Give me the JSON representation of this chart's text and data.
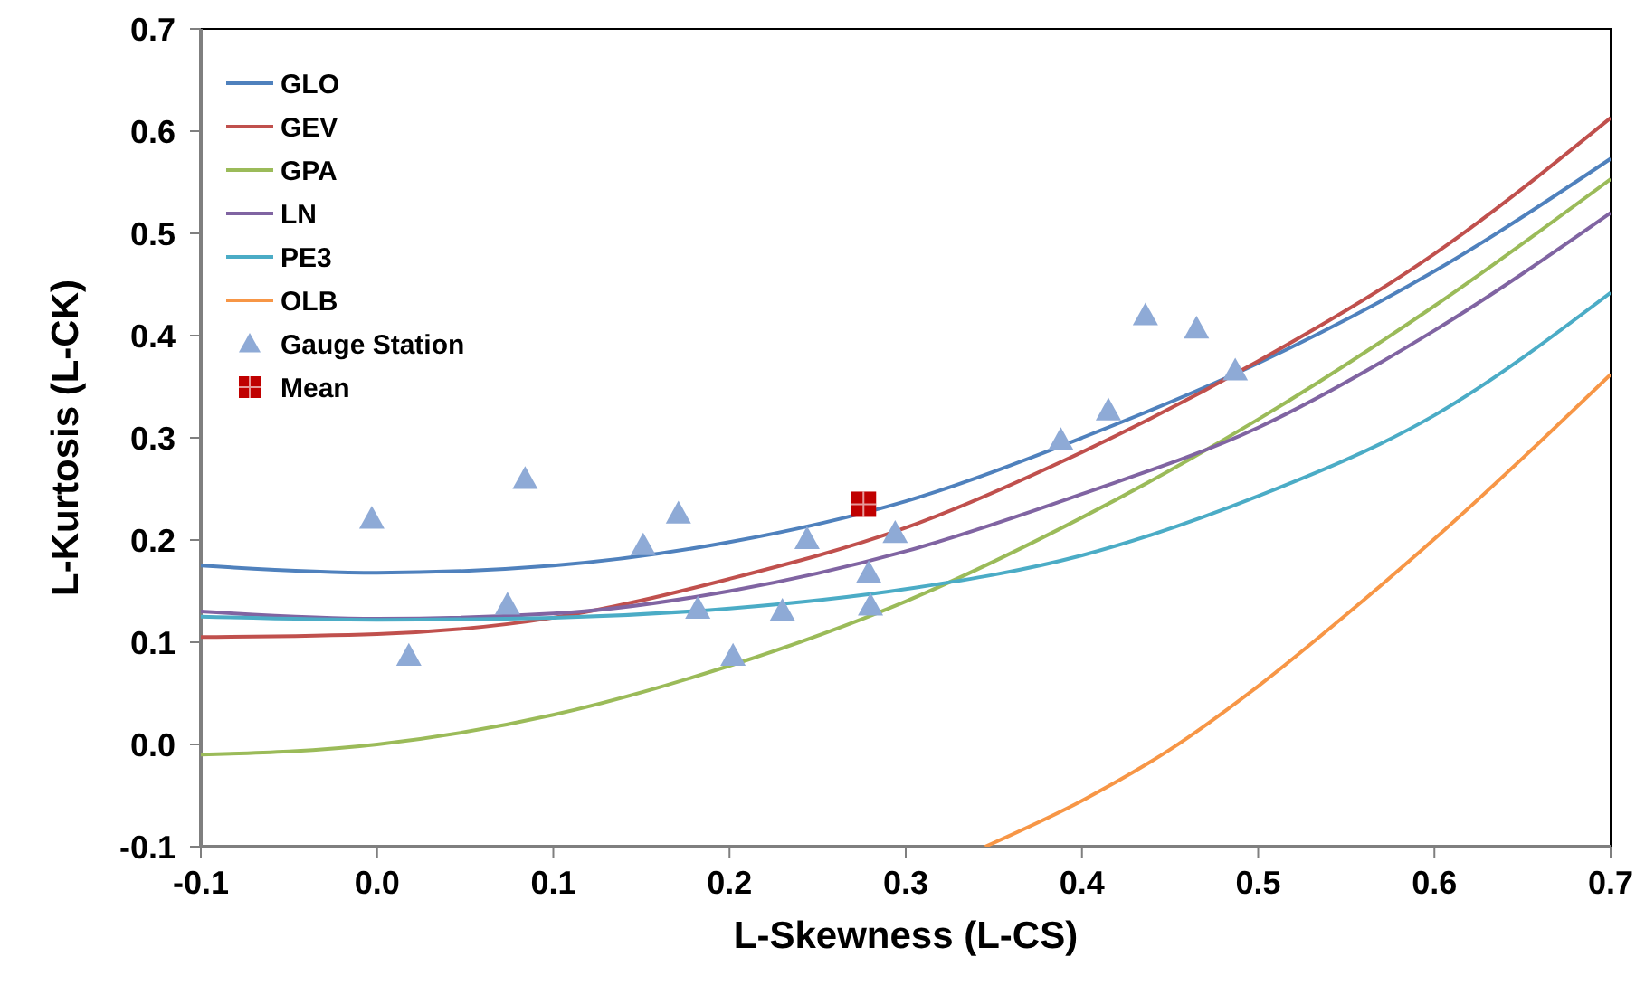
{
  "chart_data": {
    "type": "line",
    "xlabel": "L-Skewness (L-CS)",
    "ylabel": "L-Kurtosis (L-CK)",
    "xlim": [
      -0.1,
      0.7
    ],
    "ylim": [
      -0.1,
      0.7
    ],
    "xticks": [
      {
        "value": -0.1,
        "label": "-0.1"
      },
      {
        "value": 0,
        "label": "0.0"
      },
      {
        "value": 0.1,
        "label": "0.1"
      },
      {
        "value": 0.2,
        "label": "0.2"
      },
      {
        "value": 0.3,
        "label": "0.3"
      },
      {
        "value": 0.4,
        "label": "0.4"
      },
      {
        "value": 0.5,
        "label": "0.5"
      },
      {
        "value": 0.6,
        "label": "0.6"
      },
      {
        "value": 0.7,
        "label": "0.7"
      }
    ],
    "yticks": [
      {
        "value": -0.1,
        "label": "-0.1"
      },
      {
        "value": 0,
        "label": "0.0"
      },
      {
        "value": 0.1,
        "label": "0.1"
      },
      {
        "value": 0.2,
        "label": "0.2"
      },
      {
        "value": 0.3,
        "label": "0.3"
      },
      {
        "value": 0.4,
        "label": "0.4"
      },
      {
        "value": 0.5,
        "label": "0.5"
      },
      {
        "value": 0.6,
        "label": "0.6"
      },
      {
        "value": 0.7,
        "label": "0.7"
      }
    ],
    "grid": false,
    "legend": "top left",
    "line_style": "solid",
    "series": [
      {
        "name": "GLO",
        "marker": "none",
        "color": "#4f81bd",
        "x": [
          -0.1,
          0,
          0.1,
          0.2,
          0.3,
          0.4,
          0.5,
          0.6,
          0.7
        ],
        "values": [
          0.175,
          0.168,
          0.175,
          0.198,
          0.238,
          0.3,
          0.373,
          0.463,
          0.573
        ]
      },
      {
        "name": "GEV",
        "marker": "none",
        "color": "#c0504d",
        "x": [
          -0.1,
          0,
          0.1,
          0.2,
          0.3,
          0.4,
          0.5,
          0.6,
          0.7
        ],
        "values": [
          0.105,
          0.108,
          0.124,
          0.162,
          0.212,
          0.286,
          0.375,
          0.48,
          0.613
        ]
      },
      {
        "name": "GPA",
        "marker": "none",
        "color": "#9bbb59",
        "x": [
          -0.1,
          0,
          0.1,
          0.2,
          0.3,
          0.4,
          0.5,
          0.6,
          0.7
        ],
        "values": [
          -0.01,
          0,
          0.029,
          0.077,
          0.14,
          0.222,
          0.318,
          0.429,
          0.553
        ]
      },
      {
        "name": "LN",
        "marker": "none",
        "color": "#8064a2",
        "x": [
          -0.1,
          0,
          0.1,
          0.2,
          0.3,
          0.4,
          0.5,
          0.6,
          0.7
        ],
        "values": [
          0.13,
          0.123,
          0.128,
          0.15,
          0.189,
          0.245,
          0.31,
          0.405,
          0.52
        ]
      },
      {
        "name": "PE3",
        "marker": "none",
        "color": "#4bacc6",
        "x": [
          -0.1,
          0,
          0.1,
          0.2,
          0.3,
          0.4,
          0.5,
          0.6,
          0.7
        ],
        "values": [
          0.125,
          0.122,
          0.124,
          0.133,
          0.152,
          0.185,
          0.243,
          0.322,
          0.442
        ]
      },
      {
        "name": "OLB",
        "marker": "none",
        "color": "#f79646",
        "x": [
          0.345,
          0.4,
          0.45,
          0.5,
          0.55,
          0.6,
          0.65,
          0.7
        ],
        "values": [
          -0.1,
          -0.055,
          -0.005,
          0.057,
          0.127,
          0.201,
          0.28,
          0.362
        ]
      },
      {
        "name": "Gauge Station",
        "type": "scatter",
        "marker": "triangle",
        "color": "#8eaad6",
        "x": [
          -0.003,
          0.018,
          0.084,
          0.074,
          0.151,
          0.171,
          0.182,
          0.202,
          0.23,
          0.244,
          0.279,
          0.28,
          0.294,
          0.388,
          0.415,
          0.436,
          0.465,
          0.487
        ],
        "values": [
          0.221,
          0.087,
          0.26,
          0.137,
          0.195,
          0.226,
          0.133,
          0.087,
          0.131,
          0.201,
          0.168,
          0.136,
          0.207,
          0.298,
          0.327,
          0.42,
          0.407,
          0.366
        ]
      },
      {
        "name": "Mean",
        "type": "scatter",
        "marker": "square",
        "color": "#c00000",
        "x": [
          0.276
        ],
        "values": [
          0.235
        ]
      }
    ]
  }
}
